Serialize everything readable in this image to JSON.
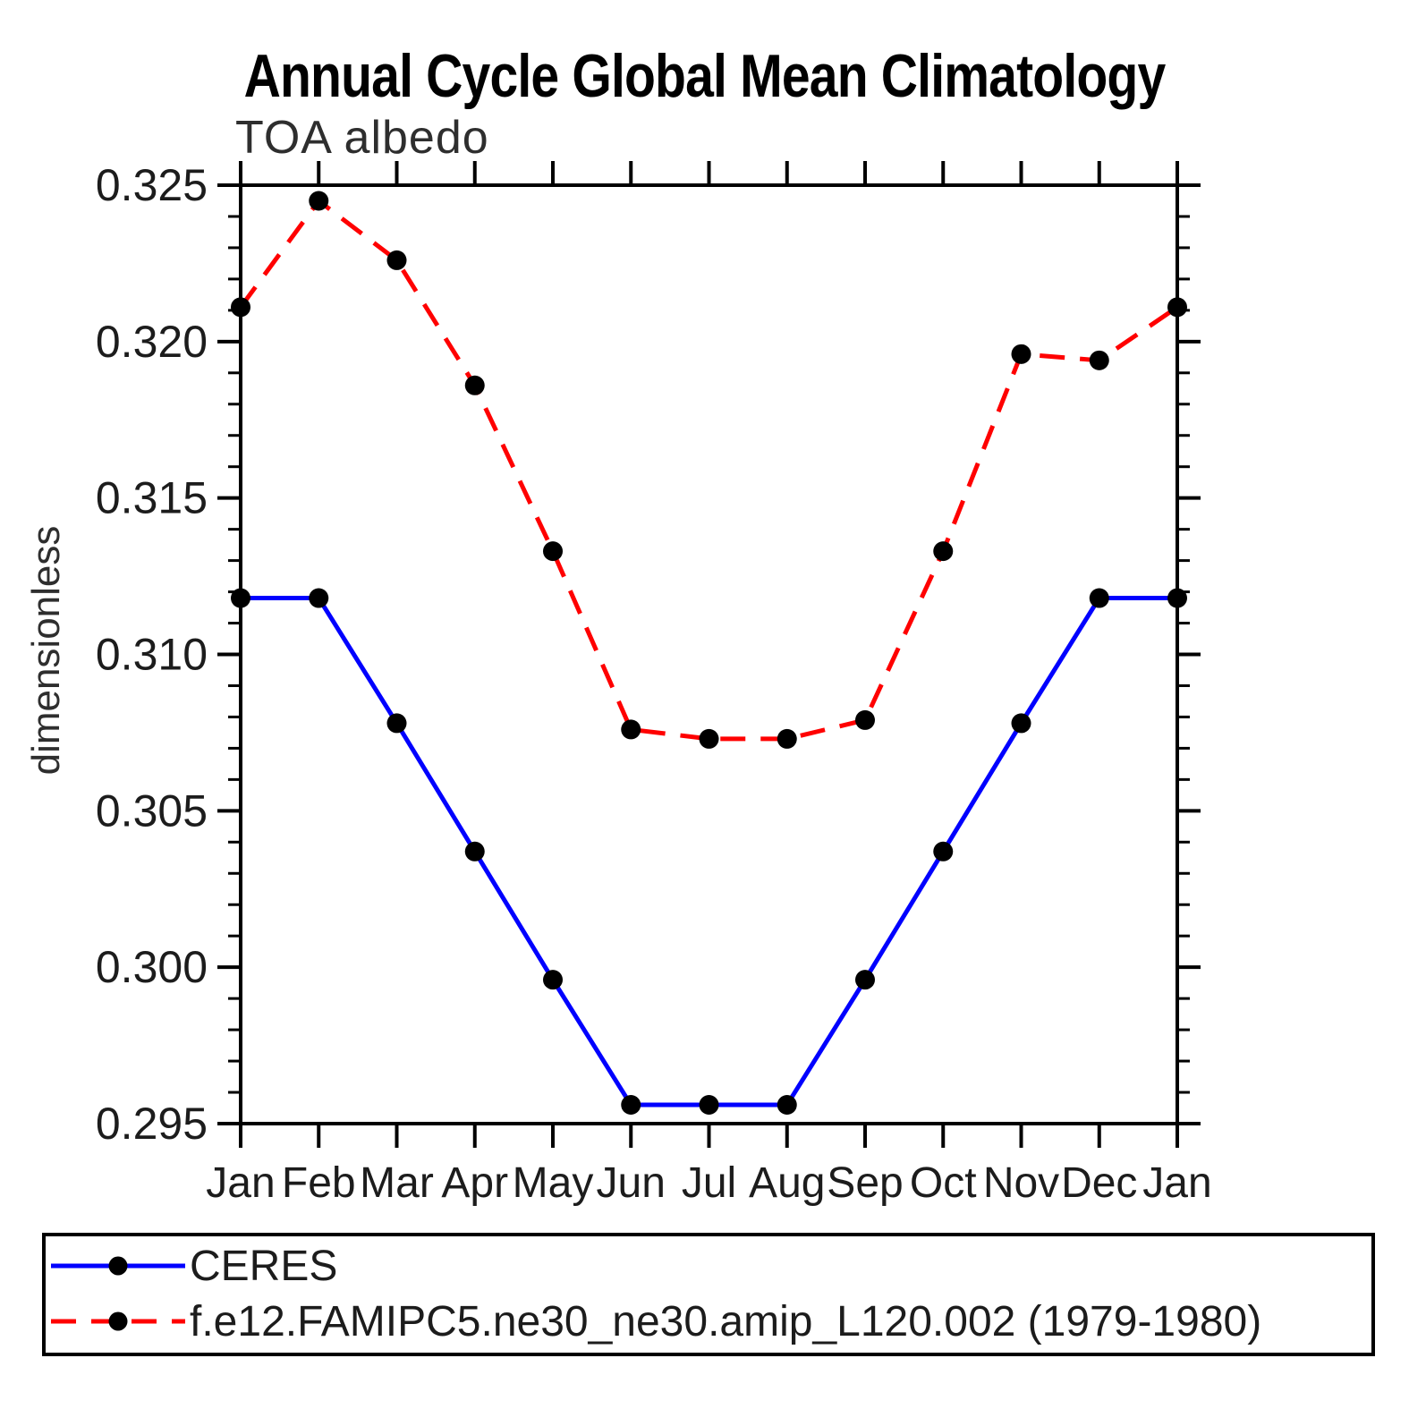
{
  "figure": {
    "title": "Annual Cycle Global Mean Climatology",
    "subtitle": "TOA albedo",
    "ylabel": "dimensionless"
  },
  "chart_data": {
    "type": "line",
    "title": "Annual Cycle Global Mean Climatology",
    "subtitle": "TOA albedo",
    "xlabel": "",
    "ylabel": "dimensionless",
    "categories": [
      "Jan",
      "Feb",
      "Mar",
      "Apr",
      "May",
      "Jun",
      "Jul",
      "Aug",
      "Sep",
      "Oct",
      "Nov",
      "Dec",
      "Jan"
    ],
    "x_tick_labels": [
      "Jan",
      "Feb",
      "Mar",
      "Apr",
      "May",
      "Jun",
      "Jul",
      "Aug",
      "Sep",
      "Oct",
      "Nov",
      "Dec",
      "Jan"
    ],
    "ylim": [
      0.295,
      0.325
    ],
    "y_ticks": [
      0.295,
      0.3,
      0.305,
      0.31,
      0.315,
      0.32,
      0.325
    ],
    "y_tick_labels": [
      "0.295",
      "0.300",
      "0.305",
      "0.310",
      "0.315",
      "0.320",
      "0.325"
    ],
    "y_minor_step": 0.001,
    "grid": false,
    "legend_position": "bottom-left-box",
    "series": [
      {
        "name": "CERES",
        "color": "#0000ff",
        "line_style": "solid",
        "marker": "circle",
        "marker_color": "#000000",
        "values": [
          0.3118,
          0.3118,
          0.3078,
          0.3037,
          0.2996,
          0.2956,
          0.2956,
          0.2956,
          0.2996,
          0.3037,
          0.3078,
          0.3118,
          0.3118
        ]
      },
      {
        "name": "f.e12.FAMIPC5.ne30_ne30.amip_L120.002 (1979-1980)",
        "color": "#ff0000",
        "line_style": "dashed",
        "marker": "circle",
        "marker_color": "#000000",
        "values": [
          0.3211,
          0.3245,
          0.3226,
          0.3186,
          0.3133,
          0.3076,
          0.3073,
          0.3073,
          0.3079,
          0.3133,
          0.3196,
          0.3194,
          0.3211
        ]
      }
    ]
  },
  "legend": {
    "items": [
      {
        "label": "CERES",
        "color": "#0000ff",
        "style": "solid"
      },
      {
        "label": "f.e12.FAMIPC5.ne30_ne30.amip_L120.002 (1979-1980)",
        "color": "#ff0000",
        "style": "dashed"
      }
    ]
  },
  "colors": {
    "axis": "#000000",
    "text": "#1c1c1c",
    "series_obs": "#0000ff",
    "series_model": "#ff0000",
    "marker": "#000000"
  }
}
